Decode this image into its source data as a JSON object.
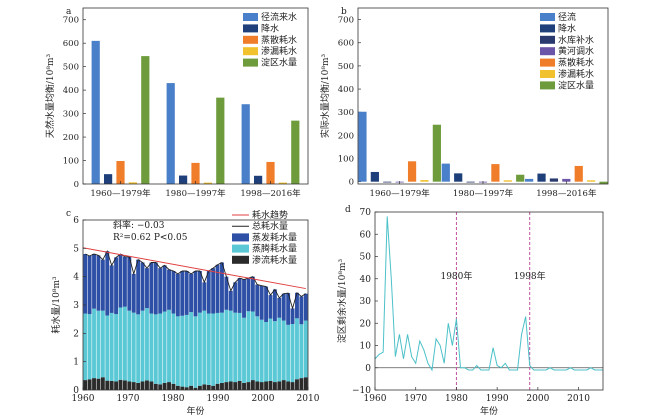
{
  "colors": {
    "runoff": "#4a7fc9",
    "precip": "#1f3f7a",
    "reservoir": "#2a3a6e",
    "yellow_river": "#6a55a8",
    "evap": "#f07d2a",
    "seep": "#f2c12e",
    "lake": "#6e9b3c",
    "trend": "#e04040",
    "total": "#222222",
    "evap_cons": "#2e4fa6",
    "transp": "#5bc8d6",
    "seep_cons": "#2b2b2b",
    "line_d": "#4cc1c8",
    "vline": "#c050a0"
  },
  "chart_data": [
    {
      "panel_label": "a",
      "type": "bar",
      "ylabel": "天然水量均衡/10⁸m³",
      "ylim": [
        0,
        750
      ],
      "yticks": [
        0,
        100,
        200,
        300,
        400,
        500,
        600,
        700
      ],
      "categories": [
        "1960—1979年",
        "1980—1997年",
        "1998—2016年"
      ],
      "series": [
        {
          "name": "径流来水",
          "color_key": "runoff",
          "values": [
            610,
            430,
            340
          ]
        },
        {
          "name": "降水",
          "color_key": "precip",
          "values": [
            42,
            36,
            35
          ]
        },
        {
          "name": "蒸散耗水",
          "color_key": "evap",
          "values": [
            98,
            90,
            94
          ]
        },
        {
          "name": "渗漏耗水",
          "color_key": "seep",
          "values": [
            7,
            6,
            6
          ]
        },
        {
          "name": "淀区水量",
          "color_key": "lake",
          "values": [
            545,
            368,
            270
          ]
        }
      ]
    },
    {
      "panel_label": "b",
      "type": "bar",
      "ylabel": "实际水量均衡/10⁸m³",
      "ylim": [
        -10,
        750
      ],
      "yticks": [
        0,
        100,
        200,
        300,
        400,
        500,
        600,
        700
      ],
      "categories": [
        "1960—1979年",
        "1980—1997年",
        "1998—2016年"
      ],
      "series": [
        {
          "name": "径流",
          "color_key": "runoff",
          "values": [
            302,
            78,
            12
          ]
        },
        {
          "name": "降水",
          "color_key": "precip",
          "values": [
            42,
            36,
            35
          ]
        },
        {
          "name": "水库补水",
          "color_key": "reservoir",
          "values": [
            0,
            0,
            14
          ]
        },
        {
          "name": "黄河调水",
          "color_key": "yellow_river",
          "values": [
            0,
            0,
            12
          ]
        },
        {
          "name": "蒸散耗水",
          "color_key": "evap",
          "values": [
            88,
            76,
            68
          ]
        },
        {
          "name": "渗漏耗水",
          "color_key": "seep",
          "values": [
            7,
            6,
            6
          ]
        },
        {
          "name": "淀区水量",
          "color_key": "lake",
          "values": [
            246,
            30,
            -10
          ]
        }
      ]
    },
    {
      "panel_label": "c",
      "type": "bar",
      "xlabel": "年份",
      "ylabel": "耗水量/10⁸m³",
      "ylim": [
        0,
        6
      ],
      "xlim": [
        1960,
        2010
      ],
      "xticks": [
        1960,
        1970,
        1980,
        1990,
        2000,
        2010
      ],
      "yticks": [
        0,
        1,
        2,
        3,
        4,
        5,
        6
      ],
      "annotation": {
        "slope": "斜率: −0.03",
        "r2": "R²=0.62  P<0.05"
      },
      "legend": [
        "耗水趋势",
        "总耗水量",
        "蒸发耗水量",
        "蒸腾耗水量",
        "渗流耗水量"
      ],
      "trend": {
        "x": [
          1960,
          2010
        ],
        "y": [
          5.02,
          3.58
        ]
      },
      "x": [
        1960,
        1961,
        1962,
        1963,
        1964,
        1965,
        1966,
        1967,
        1968,
        1969,
        1970,
        1971,
        1972,
        1973,
        1974,
        1975,
        1976,
        1977,
        1978,
        1979,
        1980,
        1981,
        1982,
        1983,
        1984,
        1985,
        1986,
        1987,
        1988,
        1989,
        1990,
        1991,
        1992,
        1993,
        1994,
        1995,
        1996,
        1997,
        1998,
        1999,
        2000,
        2001,
        2002,
        2003,
        2004,
        2005,
        2006,
        2007,
        2008,
        2009,
        2010
      ],
      "seep_cons": [
        0.35,
        0.38,
        0.42,
        0.4,
        0.45,
        0.33,
        0.32,
        0.3,
        0.36,
        0.34,
        0.3,
        0.28,
        0.25,
        0.3,
        0.34,
        0.3,
        0.22,
        0.2,
        0.25,
        0.28,
        0.22,
        0.15,
        0.12,
        0.1,
        0.15,
        0.08,
        0.15,
        0.2,
        0.18,
        0.15,
        0.22,
        0.25,
        0.28,
        0.3,
        0.28,
        0.32,
        0.25,
        0.28,
        0.35,
        0.3,
        0.28,
        0.3,
        0.32,
        0.28,
        0.3,
        0.35,
        0.3,
        0.28,
        0.38,
        0.42,
        0.45
      ],
      "transp_cons": [
        2.35,
        2.3,
        2.45,
        2.4,
        2.35,
        2.3,
        2.4,
        2.38,
        2.55,
        2.6,
        2.5,
        2.45,
        2.42,
        2.5,
        2.55,
        2.4,
        2.45,
        2.5,
        2.52,
        2.55,
        2.48,
        2.45,
        2.5,
        2.55,
        2.6,
        2.52,
        2.58,
        2.6,
        2.52,
        2.55,
        2.5,
        2.48,
        2.55,
        2.5,
        2.45,
        2.4,
        2.3,
        2.5,
        2.42,
        2.3,
        2.2,
        2.1,
        2.2,
        2.15,
        2.25,
        2.1,
        2.0,
        2.05,
        2.15,
        1.9,
        2.0
      ],
      "evap_cons": [
        2.1,
        2.05,
        1.93,
        1.95,
        1.8,
        2.27,
        1.68,
        2.0,
        1.89,
        1.76,
        1.9,
        1.37,
        1.93,
        1.7,
        1.41,
        1.8,
        1.83,
        1.6,
        1.63,
        1.42,
        1.5,
        1.5,
        1.58,
        1.55,
        1.35,
        1.6,
        1.47,
        1.0,
        1.5,
        1.6,
        1.7,
        1.77,
        1.17,
        0.7,
        1.07,
        1.23,
        1.35,
        1.17,
        1.23,
        1.12,
        1.2,
        1.25,
        0.83,
        1.12,
        0.7,
        0.95,
        1.12,
        0.55,
        0.9,
        0.98,
        0.95
      ]
    },
    {
      "panel_label": "d",
      "type": "line",
      "xlabel": "年份",
      "ylabel": "淀区剩余水量/10⁸m³",
      "ylim": [
        -10,
        70
      ],
      "xlim": [
        1960,
        2016
      ],
      "xticks": [
        1960,
        1970,
        1980,
        1990,
        2000,
        2010
      ],
      "yticks": [
        -10,
        0,
        10,
        20,
        30,
        40,
        50,
        60,
        70
      ],
      "vlines": [
        {
          "x": 1980,
          "label": "1980年"
        },
        {
          "x": 1998,
          "label": "1998年"
        }
      ],
      "x": [
        1960,
        1961,
        1962,
        1963,
        1964,
        1965,
        1966,
        1967,
        1968,
        1969,
        1970,
        1971,
        1972,
        1973,
        1974,
        1975,
        1976,
        1977,
        1978,
        1979,
        1980,
        1981,
        1982,
        1983,
        1984,
        1985,
        1986,
        1987,
        1988,
        1989,
        1990,
        1991,
        1992,
        1993,
        1994,
        1995,
        1996,
        1997,
        1998,
        1999,
        2000,
        2001,
        2002,
        2003,
        2004,
        2005,
        2006,
        2007,
        2008,
        2009,
        2010,
        2011,
        2012,
        2013,
        2014,
        2015,
        2016
      ],
      "y": [
        4,
        6,
        7,
        68,
        40,
        5,
        15,
        4,
        15,
        5,
        2,
        12,
        8,
        2,
        -1,
        13,
        10,
        2,
        20,
        10,
        22,
        0,
        0,
        -1,
        -1,
        1,
        -1,
        -1,
        -1,
        9,
        1,
        0,
        2,
        -1,
        -1,
        -1,
        15,
        23,
        1,
        -1,
        -1,
        -1,
        -1,
        0,
        -1,
        -1,
        -1,
        -1,
        0,
        -1,
        -1,
        -1,
        -1,
        0,
        -1,
        -1,
        -1
      ]
    }
  ]
}
